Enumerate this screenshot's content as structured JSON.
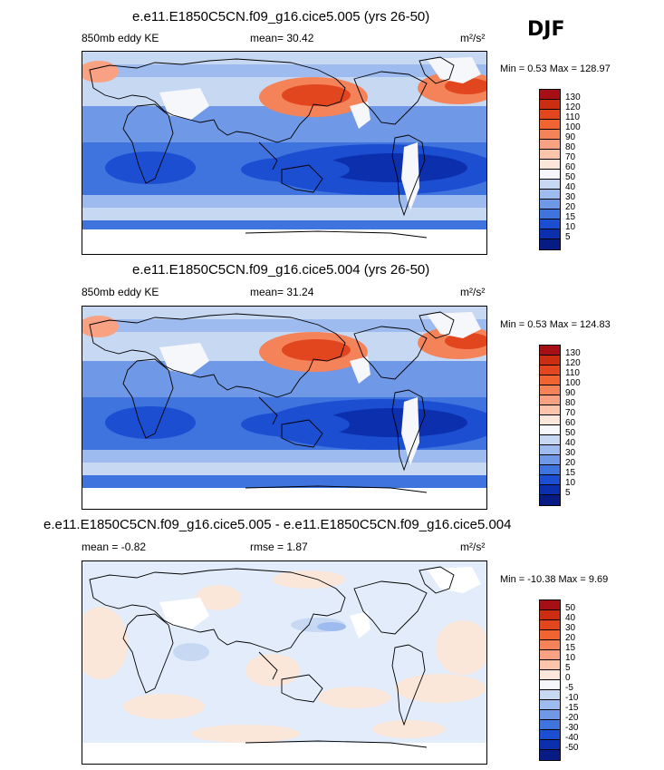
{
  "season": "DJF",
  "units_html": "m²/s²",
  "panels": [
    {
      "title": "e.e11.E1850C5CN.f09_g16.cice5.005 (yrs 26-50)",
      "left_label": "850mb eddy KE",
      "center_label": "mean=  30.42",
      "units": "m²/s²",
      "minmax": "Min =   0.53 Max = 128.97",
      "colorbar": {
        "labels": [
          "130",
          "120",
          "110",
          "100",
          "90",
          "80",
          "70",
          "60",
          "50",
          "40",
          "30",
          "20",
          "15",
          "10",
          "5"
        ],
        "colors": [
          "#a50f15",
          "#cb2d12",
          "#e2461e",
          "#f06432",
          "#f4835a",
          "#f8a283",
          "#fbc4ab",
          "#fbe6da",
          "#f5f7fb",
          "#c7d8f3",
          "#9dbbee",
          "#6f98e6",
          "#3f73de",
          "#1b4ed1",
          "#0c2fae",
          "#061c84"
        ]
      }
    },
    {
      "title": "e.e11.E1850C5CN.f09_g16.cice5.004 (yrs 26-50)",
      "left_label": "850mb eddy KE",
      "center_label": "mean=  31.24",
      "units": "m²/s²",
      "minmax": "Min =   0.53 Max = 124.83",
      "colorbar": {
        "labels": [
          "130",
          "120",
          "110",
          "100",
          "90",
          "80",
          "70",
          "60",
          "50",
          "40",
          "30",
          "20",
          "15",
          "10",
          "5"
        ],
        "colors": [
          "#a50f15",
          "#cb2d12",
          "#e2461e",
          "#f06432",
          "#f4835a",
          "#f8a283",
          "#fbc4ab",
          "#fbe6da",
          "#f5f7fb",
          "#c7d8f3",
          "#9dbbee",
          "#6f98e6",
          "#3f73de",
          "#1b4ed1",
          "#0c2fae",
          "#061c84"
        ]
      }
    },
    {
      "title": "e.e11.E1850C5CN.f09_g16.cice5.005 - e.e11.E1850C5CN.f09_g16.cice5.004",
      "left_label": "mean =  -0.82",
      "center_label": "rmse =   1.87",
      "units": "m²/s²",
      "minmax": "Min = -10.38 Max =   9.69",
      "colorbar": {
        "labels": [
          "50",
          "40",
          "30",
          "20",
          "15",
          "10",
          "5",
          "0",
          "-5",
          "-10",
          "-15",
          "-20",
          "-30",
          "-40",
          "-50"
        ],
        "colors": [
          "#a50f15",
          "#cb2d12",
          "#e2461e",
          "#f06432",
          "#f4835a",
          "#f8a283",
          "#fbc4ab",
          "#fbe6da",
          "#f5f7fb",
          "#c7d8f3",
          "#9dbbee",
          "#6f98e6",
          "#3f73de",
          "#1b4ed1",
          "#0c2fae",
          "#061c84"
        ]
      }
    }
  ]
}
